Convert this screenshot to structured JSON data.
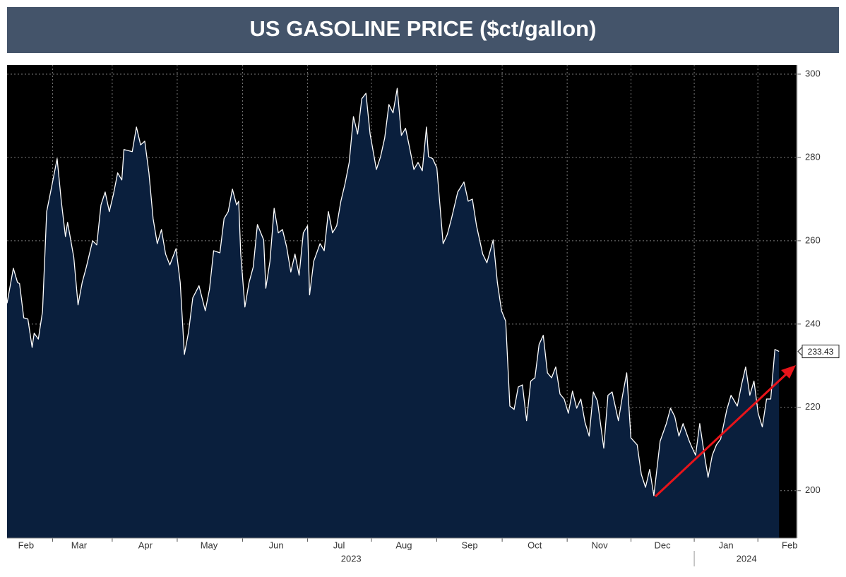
{
  "chart_data": {
    "type": "area",
    "title": "US GASOLINE PRICE ($ct/gallon)",
    "x": [
      26,
      29,
      31,
      32,
      34,
      36,
      38,
      39,
      41,
      43,
      45,
      47,
      50,
      52,
      54,
      55,
      58,
      60,
      62,
      64,
      67,
      69,
      71,
      73,
      75,
      77,
      79,
      81,
      82,
      86,
      88,
      90,
      92,
      94,
      96,
      98,
      100,
      102,
      104,
      107,
      109,
      111,
      113,
      115,
      118,
      121,
      123,
      125,
      128,
      130,
      132,
      134,
      136,
      137,
      138,
      140,
      142,
      144,
      146,
      149,
      150,
      152,
      154,
      156,
      158,
      160,
      162,
      164,
      166,
      168,
      170,
      171,
      173,
      176,
      178,
      180,
      182,
      184,
      186,
      188,
      190,
      192,
      194,
      196,
      198,
      200,
      203,
      205,
      207,
      209,
      211,
      213,
      215,
      217,
      219,
      221,
      223,
      225,
      227,
      228,
      230,
      232,
      235,
      237,
      239,
      242,
      245,
      247,
      249,
      251,
      254,
      256,
      259,
      261,
      263,
      265,
      267,
      269,
      271,
      273,
      275,
      277,
      279,
      281,
      283,
      285,
      287,
      289,
      291,
      293,
      295,
      297,
      299,
      301,
      303,
      305,
      307,
      309,
      312,
      314,
      316,
      319,
      321,
      323,
      325,
      328,
      330,
      332,
      334,
      336,
      339,
      342,
      344,
      346,
      348,
      350,
      353,
      354,
      356,
      358,
      360,
      362,
      364,
      366,
      368,
      371,
      373,
      376,
      378,
      380,
      382,
      384,
      386,
      388,
      390,
      392,
      394,
      396
    ],
    "series": [
      {
        "color": "#ffffff",
        "fill": "#0a1f3d",
        "values": [
          245,
          253.4,
          250,
          249.7,
          241.5,
          241.2,
          234.4,
          237.8,
          236.4,
          243,
          267,
          272,
          279.7,
          269.5,
          261,
          264.4,
          256,
          244.6,
          250,
          253.7,
          260,
          259,
          268.6,
          271.7,
          267,
          271.2,
          276.3,
          274.6,
          281.9,
          281.4,
          287.3,
          283,
          283.9,
          276.3,
          265.3,
          259.3,
          262.7,
          256.8,
          254.2,
          258.1,
          250,
          232.7,
          238.1,
          246.3,
          249.2,
          243.2,
          248.3,
          257.6,
          257.1,
          265.3,
          267,
          272.4,
          268.6,
          269.5,
          256.8,
          244.1,
          250,
          253.7,
          263.9,
          260.2,
          248.6,
          255.1,
          267.8,
          261.9,
          262.7,
          258.5,
          252.5,
          256.8,
          251.7,
          261.9,
          263.6,
          247,
          255.1,
          259.3,
          257.6,
          267,
          261.9,
          263.6,
          269.5,
          273.7,
          278.8,
          289.8,
          285.6,
          294.1,
          295.4,
          285.6,
          277.1,
          280.2,
          284.7,
          292.7,
          290.7,
          296.6,
          285.3,
          287,
          282.2,
          277.1,
          278.8,
          276.8,
          287.3,
          280.2,
          279.7,
          277.5,
          259.3,
          261.5,
          265.3,
          271.7,
          274.1,
          269.5,
          270,
          263.6,
          256.8,
          254.7,
          260.2,
          250,
          243.2,
          240.7,
          220.3,
          219.5,
          224.9,
          225.4,
          216.8,
          226.3,
          227.1,
          235.1,
          237.3,
          228.3,
          227.1,
          229.7,
          223.2,
          222,
          218.6,
          223.9,
          219.8,
          222,
          216.4,
          213.1,
          223.7,
          221.5,
          210.2,
          222.9,
          223.7,
          216.8,
          222.9,
          228.3,
          212.7,
          211,
          203.9,
          200.8,
          205.1,
          198.8,
          211.9,
          216.1,
          219.8,
          217.8,
          213.1,
          216.1,
          211.9,
          210.7,
          208.5,
          216.1,
          209.3,
          203.2,
          208.5,
          211,
          212.4,
          219.5,
          222.9,
          220.3,
          225.4,
          229.7,
          222.9,
          226.3,
          218.6,
          215.3,
          222,
          222,
          233.9,
          233.43
        ]
      }
    ],
    "xlim": [
      26,
      404.4
    ],
    "xticks": [
      {
        "value": 35.1,
        "label": "Feb"
      },
      {
        "value": 60.5,
        "label": "Mar"
      },
      {
        "value": 92.3,
        "label": "Apr"
      },
      {
        "value": 122.8,
        "label": "May"
      },
      {
        "value": 155.0,
        "label": "Jun"
      },
      {
        "value": 185.1,
        "label": "Jul"
      },
      {
        "value": 216.2,
        "label": "Aug"
      },
      {
        "value": 247.7,
        "label": "Sep"
      },
      {
        "value": 278.9,
        "label": "Oct"
      },
      {
        "value": 310.0,
        "label": "Nov"
      },
      {
        "value": 340.1,
        "label": "Dec"
      },
      {
        "value": 370.6,
        "label": "Jan"
      },
      {
        "value": 401.1,
        "label": "Feb"
      }
    ],
    "year_ticks": [
      {
        "value": 190.9,
        "label": "2023"
      },
      {
        "value": 380.4,
        "label": "2024"
      }
    ],
    "ylim": [
      188.6,
      302.2
    ],
    "yticks": [
      200,
      220,
      240,
      260,
      280,
      300
    ],
    "y_axis_side": "right",
    "grid": true
  }
}
